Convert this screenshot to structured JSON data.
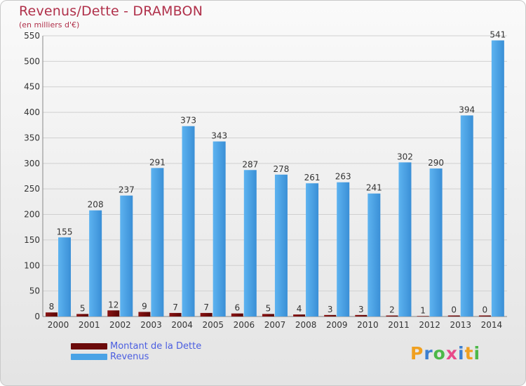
{
  "title": "Revenus/Dette - DRAMBON",
  "subtitle": "(en milliers d'€)",
  "colors": {
    "title": "#b0304a",
    "dette": "#6b0a0a",
    "revenus": "#4aa3e6",
    "legend_text": "#4a5de0"
  },
  "legend": {
    "dette_label": "Montant de la Dette",
    "revenus_label": "Revenus"
  },
  "logo": {
    "text": "Proxiti",
    "letter_colors": [
      "#f0a020",
      "#3c7fd0",
      "#4cb848",
      "#e84a8a",
      "#3c7fd0",
      "#f0a020",
      "#4cb848"
    ]
  },
  "chart_data": {
    "type": "bar",
    "title": "Revenus/Dette - DRAMBON",
    "subtitle": "(en milliers d'€)",
    "categories": [
      "2000",
      "2001",
      "2002",
      "2003",
      "2004",
      "2005",
      "2006",
      "2007",
      "2008",
      "2009",
      "2010",
      "2011",
      "2012",
      "2013",
      "2014"
    ],
    "series": [
      {
        "name": "Montant de la Dette",
        "values": [
          8,
          5,
          12,
          9,
          7,
          7,
          6,
          5,
          4,
          3,
          3,
          2,
          1,
          0,
          0
        ]
      },
      {
        "name": "Revenus",
        "values": [
          155,
          208,
          237,
          291,
          373,
          343,
          287,
          278,
          261,
          263,
          241,
          302,
          290,
          394,
          541
        ]
      }
    ],
    "yticks": [
      0,
      50,
      100,
      150,
      200,
      250,
      300,
      350,
      400,
      450,
      500,
      550
    ],
    "ylim": [
      0,
      550
    ],
    "grid": true,
    "legend_position": "bottom-left"
  }
}
